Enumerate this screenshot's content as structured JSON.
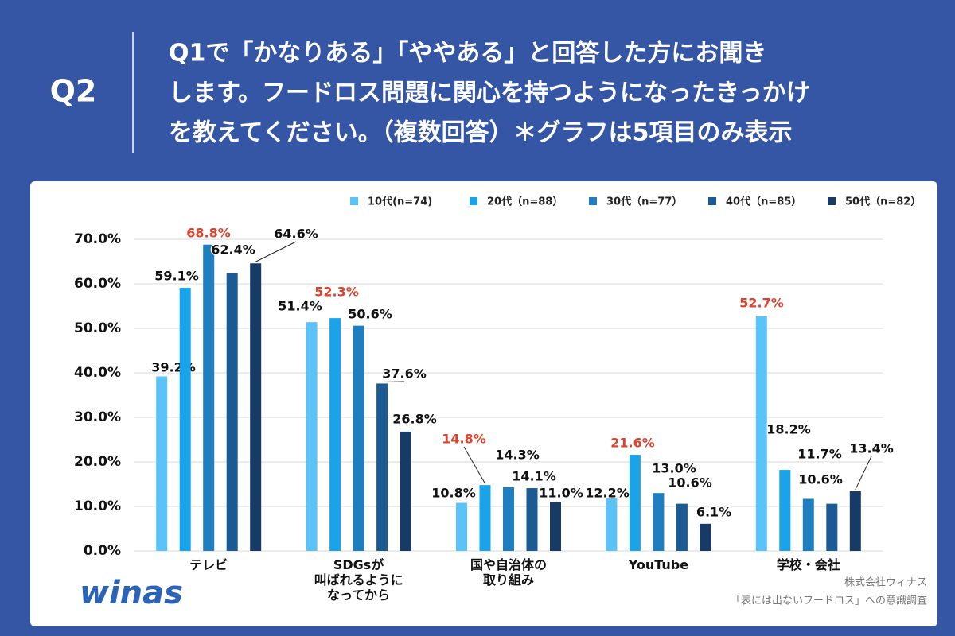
{
  "header": {
    "label": "Q2",
    "question": [
      "Q1で「かなりある」「ややある」と回答した方にお聞き",
      "します。フードロス問題に関心を持つようになったきっかけ",
      "を教えてください。（複数回答）＊グラフは5項目のみ表示"
    ]
  },
  "chart_data": {
    "type": "bar",
    "categories": [
      "テレビ",
      "SDGsが\n叫ばれるように\nなってから",
      "国や自治体の\n取り組み",
      "YouTube",
      "学校・会社"
    ],
    "series": [
      {
        "name": "10代(n=74)",
        "color": "#5bc3f7",
        "values": [
          39.2,
          51.4,
          10.8,
          12.2,
          52.7
        ],
        "value_labels": [
          "39.2%",
          "51.4%",
          "10.8%",
          "12.2%",
          "52.7%"
        ]
      },
      {
        "name": "20代（n=88）",
        "color": "#1ba3ea",
        "values": [
          59.1,
          52.3,
          14.8,
          21.6,
          18.2
        ],
        "value_labels": [
          "59.1%",
          "52.3%",
          "14.8%",
          "21.6%",
          "18.2%"
        ]
      },
      {
        "name": "30代（n=77）",
        "color": "#1e7ec0",
        "values": [
          68.8,
          50.6,
          14.3,
          13.0,
          11.7
        ],
        "value_labels": [
          "68.8%",
          "50.6%",
          "14.3%",
          "13.0%",
          "11.7%"
        ]
      },
      {
        "name": "40代（n=85）",
        "color": "#1b5a93",
        "values": [
          62.4,
          37.6,
          14.1,
          10.6,
          10.6
        ],
        "value_labels": [
          "62.4%",
          "37.6%",
          "14.1%",
          "10.6%",
          "10.6%"
        ]
      },
      {
        "name": "50代（n=82）",
        "color": "#173a66",
        "values": [
          64.6,
          26.8,
          11.0,
          6.1,
          13.4
        ],
        "value_labels": [
          "64.6%",
          "26.8%",
          "11.0%",
          "6.1%",
          "13.4%"
        ]
      }
    ],
    "highlight_color": "#e2402b",
    "ylim": [
      0,
      70
    ],
    "yticks": [
      {
        "value": 0,
        "label": "0.0%"
      },
      {
        "value": 10,
        "label": "10.0%"
      },
      {
        "value": 20,
        "label": "20.0%"
      },
      {
        "value": 30,
        "label": "30.0%"
      },
      {
        "value": 40,
        "label": "40.0%"
      },
      {
        "value": 50,
        "label": "50.0%"
      },
      {
        "value": 60,
        "label": "60.0%"
      },
      {
        "value": 70,
        "label": "70.0%"
      }
    ],
    "grid": true
  },
  "footer": {
    "logo": "winas",
    "company": "株式会社ウィナス",
    "survey": "「表には出ないフードロス」への意識調査"
  }
}
